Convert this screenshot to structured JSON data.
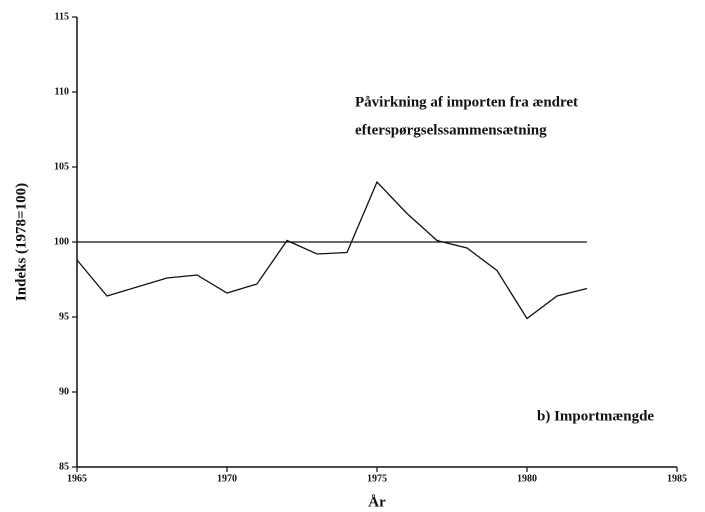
{
  "chart_data": {
    "type": "line",
    "annotation_lines": [
      "Påvirkning af importen fra ændret",
      "efterspørgselssammensætning"
    ],
    "series_label": "b) Importmængde",
    "xlabel": "År",
    "ylabel": "Indeks (1978=100)",
    "x": [
      1965,
      1966,
      1967,
      1968,
      1969,
      1970,
      1971,
      1972,
      1973,
      1974,
      1975,
      1976,
      1977,
      1978,
      1979,
      1980,
      1981,
      1982
    ],
    "series": [
      {
        "color": "#111111",
        "values": [
          98.8,
          96.4,
          97.0,
          97.6,
          97.8,
          96.6,
          97.2,
          100.1,
          99.2,
          99.3,
          104.0,
          101.9,
          100.1,
          99.6,
          98.1,
          94.9,
          96.4,
          96.9
        ]
      }
    ],
    "reference": 100,
    "xlim": [
      1965,
      1985
    ],
    "xticks": [
      1965,
      1970,
      1975,
      1980,
      1985
    ],
    "ylim": [
      85,
      115
    ],
    "yticks": [
      85,
      90,
      95,
      100,
      105,
      110,
      115
    ]
  }
}
